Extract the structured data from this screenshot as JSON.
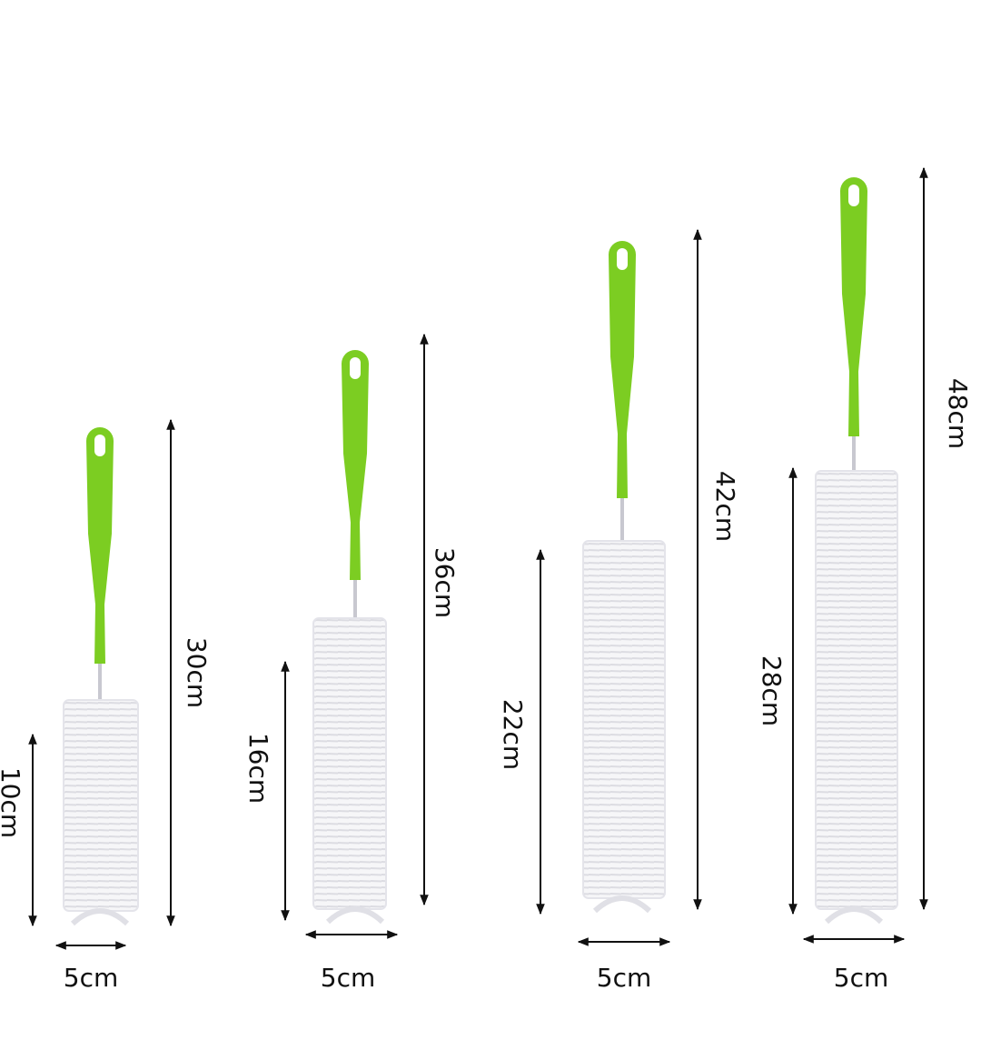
{
  "brushes": [
    {
      "length": "30cm",
      "bristle_length": "10cm",
      "width": "5cm"
    },
    {
      "length": "36cm",
      "bristle_length": "16cm",
      "width": "5cm"
    },
    {
      "length": "42cm",
      "bristle_length": "22cm",
      "width": "5cm"
    },
    {
      "length": "48cm",
      "bristle_length": "28cm",
      "width": "5cm"
    }
  ]
}
